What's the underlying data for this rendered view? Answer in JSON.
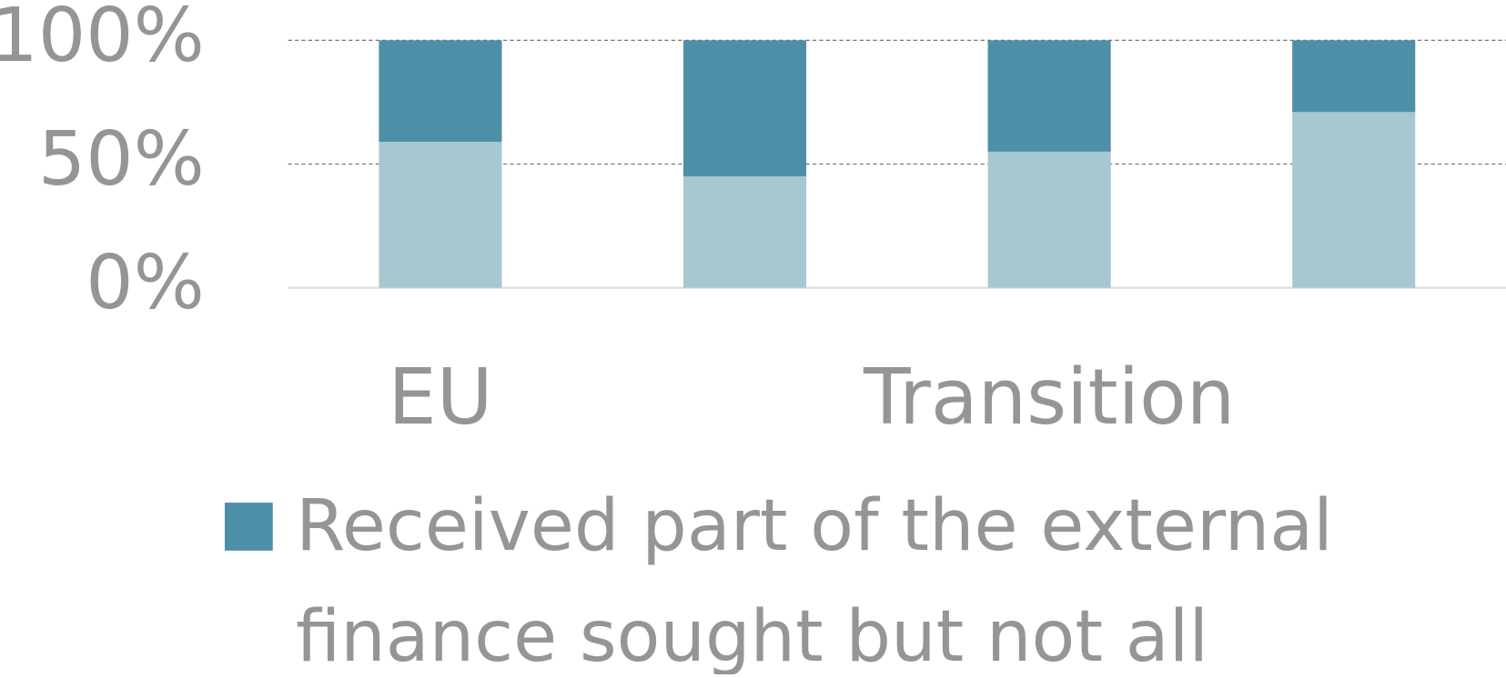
{
  "chart_data": {
    "type": "stacked_bar",
    "categories": [
      "EU",
      null,
      "Transition",
      null
    ],
    "series": [
      {
        "color": "#a8c7d1",
        "values": [
          59,
          45,
          55,
          71
        ]
      },
      {
        "name": "Received part of the external finance sought but not all",
        "color": "#4e8fa8",
        "values": [
          41,
          55,
          45,
          29
        ]
      }
    ],
    "ylim": [
      0,
      100
    ],
    "yticks": [
      {
        "value": 0,
        "label": "0%"
      },
      {
        "value": 50,
        "label": "50%"
      },
      {
        "value": 100,
        "label": "100%"
      }
    ],
    "grid": true,
    "legend": "bottom"
  }
}
